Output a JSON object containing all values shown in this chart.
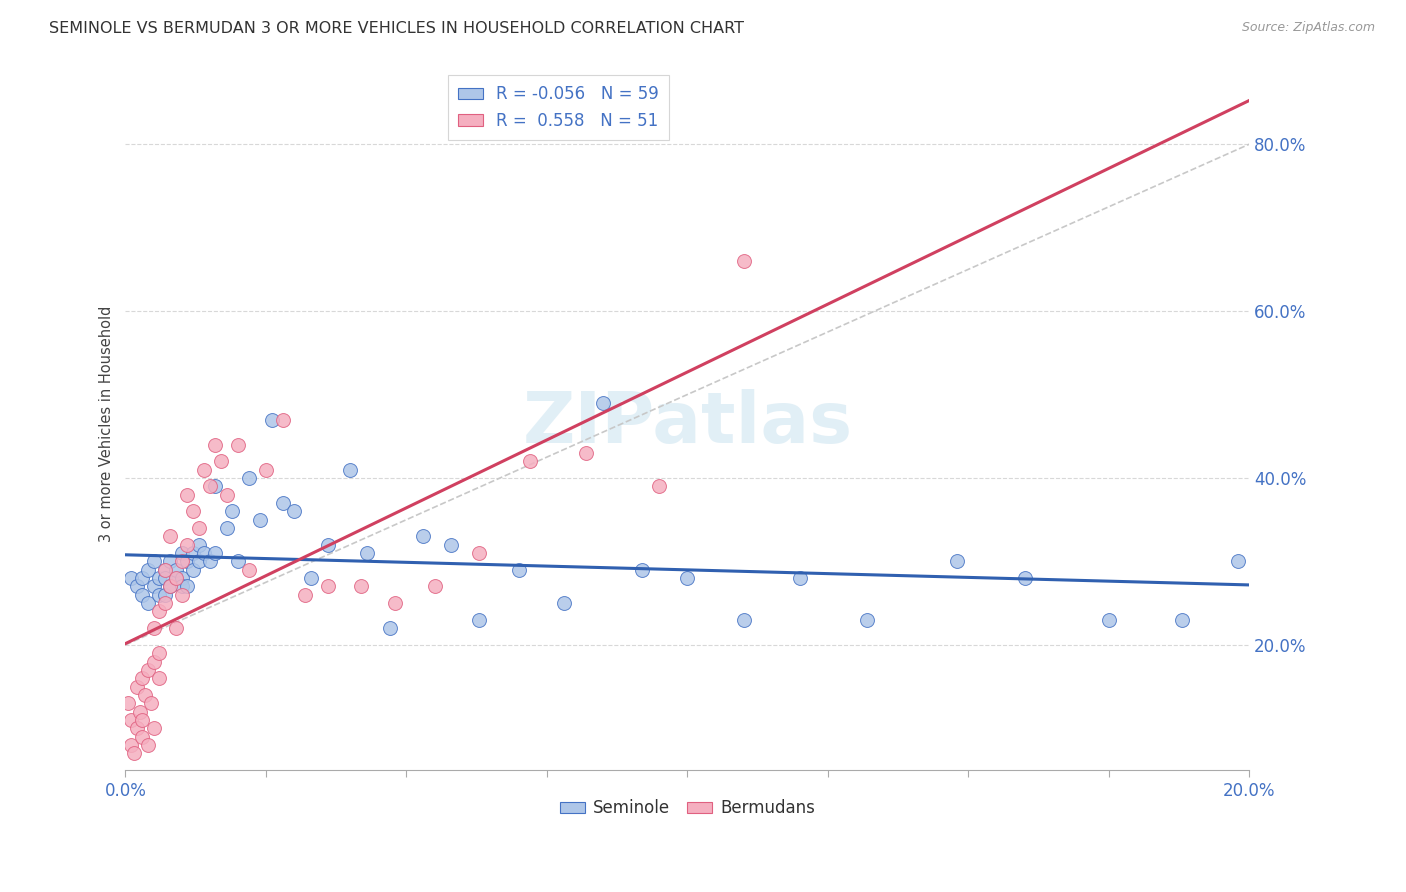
{
  "title": "SEMINOLE VS BERMUDAN 3 OR MORE VEHICLES IN HOUSEHOLD CORRELATION CHART",
  "source": "Source: ZipAtlas.com",
  "ylabel": "3 or more Vehicles in Household",
  "right_ytick_labels": [
    "20.0%",
    "40.0%",
    "60.0%",
    "80.0%"
  ],
  "right_ytick_vals": [
    0.2,
    0.4,
    0.6,
    0.8
  ],
  "xlim": [
    0.0,
    0.2
  ],
  "ylim": [
    0.05,
    0.88
  ],
  "watermark": "ZIPatlas",
  "legend_r_seminole": "-0.056",
  "legend_n_seminole": "59",
  "legend_r_bermudans": "0.558",
  "legend_n_bermudans": "51",
  "seminole_face_color": "#aec6e8",
  "bermudans_face_color": "#f5afc0",
  "seminole_edge_color": "#4472c4",
  "bermudans_edge_color": "#e06080",
  "seminole_line_color": "#3060b0",
  "bermudans_line_color": "#d04060",
  "ref_line_color": "#c8c8c8",
  "grid_color": "#d8d8d8",
  "seminole_x": [
    0.001,
    0.002,
    0.003,
    0.003,
    0.004,
    0.004,
    0.005,
    0.005,
    0.006,
    0.006,
    0.007,
    0.007,
    0.007,
    0.008,
    0.008,
    0.009,
    0.009,
    0.01,
    0.01,
    0.01,
    0.011,
    0.011,
    0.012,
    0.012,
    0.013,
    0.013,
    0.014,
    0.015,
    0.016,
    0.016,
    0.018,
    0.019,
    0.02,
    0.022,
    0.024,
    0.026,
    0.028,
    0.03,
    0.033,
    0.036,
    0.04,
    0.043,
    0.047,
    0.053,
    0.058,
    0.063,
    0.07,
    0.078,
    0.085,
    0.092,
    0.1,
    0.11,
    0.12,
    0.132,
    0.148,
    0.16,
    0.175,
    0.188,
    0.198
  ],
  "seminole_y": [
    0.28,
    0.27,
    0.26,
    0.28,
    0.25,
    0.29,
    0.27,
    0.3,
    0.28,
    0.26,
    0.29,
    0.26,
    0.28,
    0.27,
    0.3,
    0.28,
    0.29,
    0.31,
    0.28,
    0.27,
    0.3,
    0.27,
    0.31,
    0.29,
    0.32,
    0.3,
    0.31,
    0.3,
    0.39,
    0.31,
    0.34,
    0.36,
    0.3,
    0.4,
    0.35,
    0.47,
    0.37,
    0.36,
    0.28,
    0.32,
    0.41,
    0.31,
    0.22,
    0.33,
    0.32,
    0.23,
    0.29,
    0.25,
    0.49,
    0.29,
    0.28,
    0.23,
    0.28,
    0.23,
    0.3,
    0.28,
    0.23,
    0.23,
    0.3
  ],
  "bermudans_x": [
    0.0005,
    0.001,
    0.001,
    0.0015,
    0.002,
    0.002,
    0.0025,
    0.003,
    0.003,
    0.003,
    0.0035,
    0.004,
    0.004,
    0.0045,
    0.005,
    0.005,
    0.005,
    0.006,
    0.006,
    0.006,
    0.007,
    0.007,
    0.008,
    0.008,
    0.009,
    0.009,
    0.01,
    0.01,
    0.011,
    0.011,
    0.012,
    0.013,
    0.014,
    0.015,
    0.016,
    0.017,
    0.018,
    0.02,
    0.022,
    0.025,
    0.028,
    0.032,
    0.036,
    0.042,
    0.048,
    0.055,
    0.063,
    0.072,
    0.082,
    0.095,
    0.11
  ],
  "bermudans_y": [
    0.13,
    0.08,
    0.11,
    0.07,
    0.1,
    0.15,
    0.12,
    0.09,
    0.16,
    0.11,
    0.14,
    0.08,
    0.17,
    0.13,
    0.18,
    0.22,
    0.1,
    0.16,
    0.24,
    0.19,
    0.25,
    0.29,
    0.27,
    0.33,
    0.28,
    0.22,
    0.3,
    0.26,
    0.32,
    0.38,
    0.36,
    0.34,
    0.41,
    0.39,
    0.44,
    0.42,
    0.38,
    0.44,
    0.29,
    0.41,
    0.47,
    0.26,
    0.27,
    0.27,
    0.25,
    0.27,
    0.31,
    0.42,
    0.43,
    0.39,
    0.66
  ]
}
